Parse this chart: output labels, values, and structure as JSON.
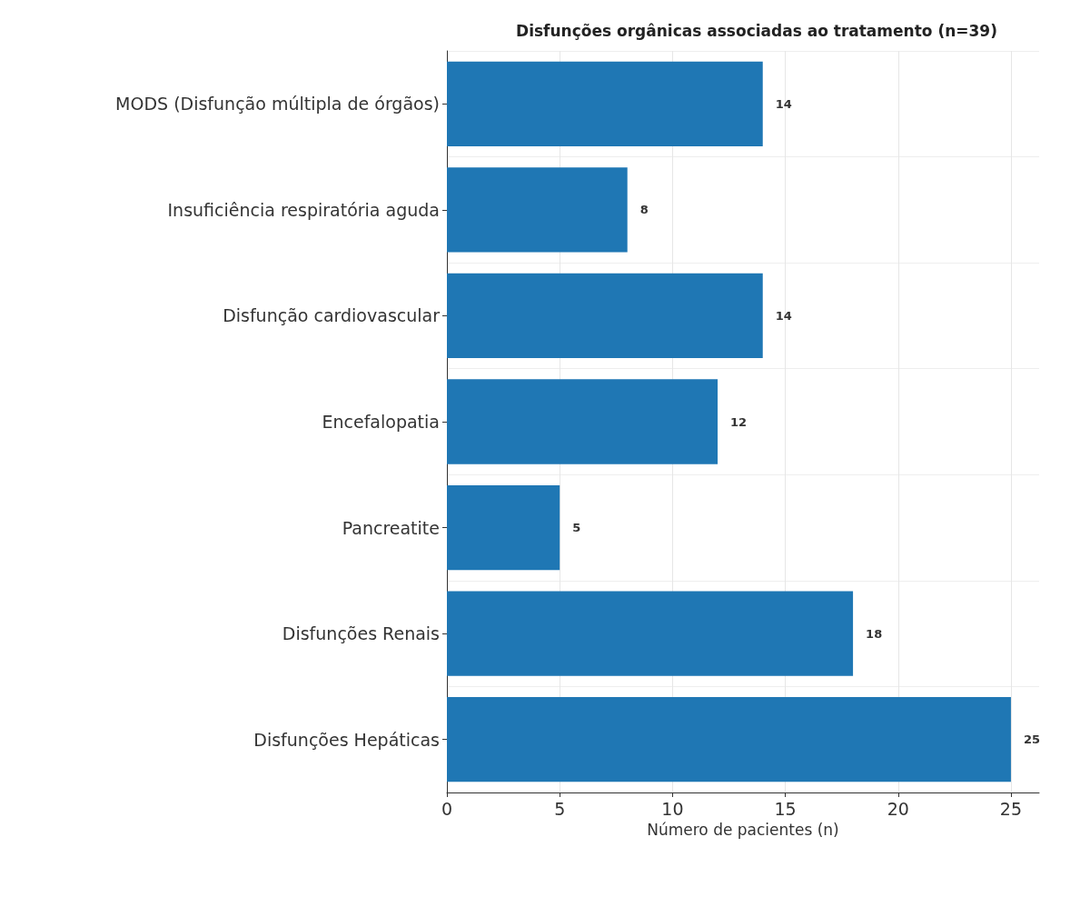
{
  "chart_data": {
    "type": "bar",
    "orientation": "horizontal",
    "title": "Disfunções orgânicas associadas ao tratamento (n=39)",
    "xlabel": "Número de pacientes (n)",
    "categories": [
      "MODS (Disfunção múltipla de órgãos)",
      "Insuficiência respiratória aguda",
      "Disfunção cardiovascular",
      "Encefalopatia",
      "Pancreatite",
      "Disfunções Renais",
      "Disfunções Hepáticas"
    ],
    "values": [
      14,
      8,
      14,
      12,
      5,
      18,
      25
    ],
    "data_labels": true,
    "color": "#1f77b4",
    "xlim": [
      0,
      26.25
    ],
    "xticks": [
      0,
      5,
      10,
      15,
      20,
      25
    ],
    "grid": true
  }
}
